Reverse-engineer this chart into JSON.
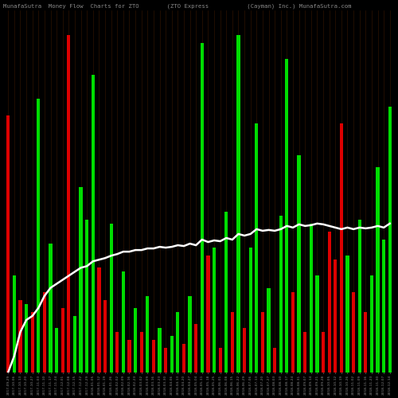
{
  "title": "MunafaSutra  Money Flow  Charts for ZTO        (ZTO Express           (Cayman) Inc.) MunafaSutra.com",
  "background_color": "#000000",
  "categories": [
    "2017-09-29",
    "2017-10-06",
    "2017-10-13",
    "2017-10-20",
    "2017-10-27",
    "2017-11-03",
    "2017-11-10",
    "2017-11-17",
    "2017-11-24",
    "2017-12-01",
    "2017-12-08",
    "2017-12-15",
    "2017-12-22",
    "2017-12-29",
    "2018-01-05",
    "2018-01-12",
    "2018-01-19",
    "2018-01-26",
    "2018-02-02",
    "2018-02-09",
    "2018-02-16",
    "2018-02-23",
    "2018-03-02",
    "2018-03-09",
    "2018-03-16",
    "2018-03-23",
    "2018-03-30",
    "2018-04-06",
    "2018-04-13",
    "2018-04-20",
    "2018-04-27",
    "2018-05-04",
    "2018-05-11",
    "2018-05-18",
    "2018-05-25",
    "2018-06-01",
    "2018-06-08",
    "2018-06-15",
    "2018-06-22",
    "2018-06-29",
    "2018-07-06",
    "2018-07-13",
    "2018-07-20",
    "2018-07-27",
    "2018-08-03",
    "2018-08-10",
    "2018-08-17",
    "2018-08-24",
    "2018-08-31",
    "2018-09-07",
    "2018-09-14",
    "2018-09-21",
    "2018-09-28",
    "2018-10-05",
    "2018-10-12",
    "2018-10-19",
    "2018-10-26",
    "2018-11-02",
    "2018-11-09",
    "2018-11-16",
    "2018-11-23",
    "2018-11-30",
    "2018-12-07",
    "2018-12-14"
  ],
  "colors": [
    "red",
    "green",
    "red",
    "green",
    "red",
    "green",
    "red",
    "green",
    "green",
    "red",
    "red",
    "green",
    "green",
    "green",
    "green",
    "red",
    "red",
    "green",
    "red",
    "green",
    "red",
    "green",
    "red",
    "green",
    "red",
    "green",
    "red",
    "green",
    "green",
    "red",
    "green",
    "red",
    "green",
    "red",
    "green",
    "red",
    "green",
    "red",
    "green",
    "red",
    "green",
    "green",
    "red",
    "green",
    "red",
    "green",
    "green",
    "red",
    "green",
    "red",
    "green",
    "green",
    "red",
    "red",
    "red",
    "red",
    "green",
    "red",
    "green",
    "red",
    "green",
    "green",
    "green",
    "green"
  ],
  "bar_heights": [
    320,
    120,
    90,
    85,
    75,
    340,
    100,
    160,
    55,
    80,
    420,
    70,
    230,
    190,
    370,
    130,
    90,
    185,
    50,
    125,
    40,
    80,
    50,
    95,
    40,
    55,
    30,
    45,
    75,
    35,
    95,
    60,
    410,
    145,
    155,
    30,
    200,
    75,
    420,
    55,
    155,
    310,
    75,
    105,
    30,
    195,
    390,
    100,
    270,
    50,
    185,
    120,
    50,
    175,
    140,
    310,
    145,
    100,
    190,
    75,
    120,
    255,
    165,
    330
  ],
  "line_y": [
    0,
    20,
    50,
    65,
    70,
    80,
    95,
    105,
    110,
    115,
    120,
    125,
    130,
    132,
    138,
    140,
    142,
    145,
    147,
    150,
    150,
    152,
    152,
    154,
    154,
    156,
    155,
    156,
    158,
    157,
    160,
    158,
    165,
    162,
    164,
    163,
    167,
    165,
    172,
    170,
    172,
    178,
    176,
    177,
    176,
    178,
    182,
    180,
    184,
    182,
    183,
    185,
    184,
    182,
    180,
    178,
    180,
    178,
    180,
    179,
    180,
    182,
    180,
    185
  ],
  "green_color": "#00dd00",
  "red_color": "#dd0000",
  "line_color": "#ffffff",
  "label_color": "#888888",
  "title_color": "#888888",
  "bar_width": 0.55,
  "ymax": 450,
  "grid_color": "#3a1800"
}
